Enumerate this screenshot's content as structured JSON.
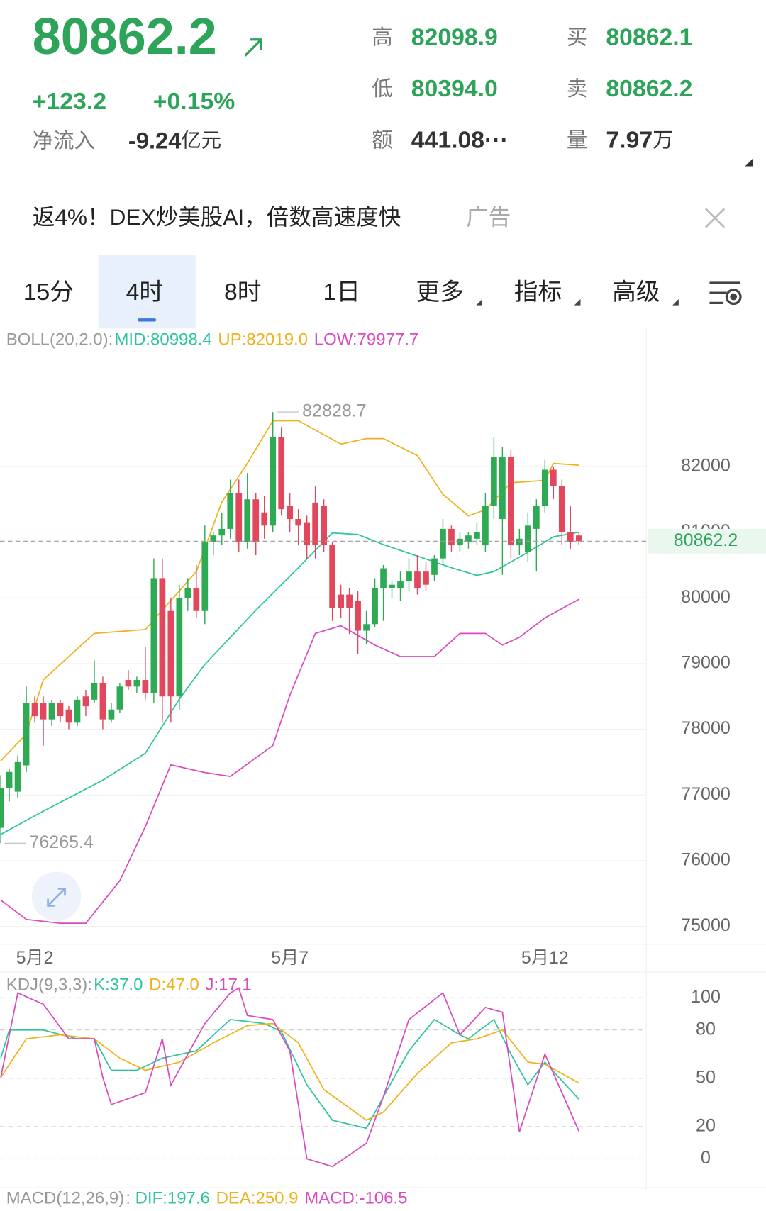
{
  "header": {
    "price": "80862.2",
    "change": "+123.2",
    "change_pct": "+0.15%",
    "inflow_label": "净流入",
    "inflow_value": "-9.24",
    "inflow_unit": "亿元",
    "stats": [
      {
        "label": "高",
        "value": "82098.9"
      },
      {
        "label": "低",
        "value": "80394.0"
      },
      {
        "label": "额",
        "value": "441.08···"
      },
      {
        "label": "买",
        "value": "80862.1"
      },
      {
        "label": "卖",
        "value": "80862.2"
      },
      {
        "label": "量",
        "value": "7.97",
        "unit": "万"
      }
    ]
  },
  "ad": {
    "text": "返4%！DEX炒美股AI，倍数高速度快",
    "tag": "广告"
  },
  "tabs": [
    "15分",
    "4时",
    "8时",
    "1日",
    "更多",
    "指标",
    "高级"
  ],
  "macd": {
    "label": "MACD(12,26,9)",
    "dif": "DIF:197.6",
    "dea": "DEA:250.9",
    "macd": "MACD:-106.5"
  },
  "chart_data": [
    {
      "type": "candlestick",
      "indicator": "BOLL(20,2.0):",
      "up_color": "#2eaa55",
      "down_color": "#e2475c",
      "categories": [
        null,
        null,
        null,
        null,
        "5月2",
        null,
        null,
        null,
        null,
        null,
        null,
        null,
        null,
        null,
        null,
        null,
        null,
        null,
        null,
        null,
        null,
        null,
        null,
        null,
        null,
        null,
        null,
        null,
        null,
        null,
        null,
        null,
        null,
        null,
        "5月7",
        null,
        null,
        null,
        null,
        null,
        null,
        null,
        null,
        null,
        null,
        null,
        null,
        null,
        null,
        null,
        null,
        null,
        null,
        null,
        null,
        null,
        null,
        null,
        null,
        null,
        null,
        null,
        null,
        null,
        "5月12",
        null,
        null,
        null,
        null
      ],
      "open": [
        76500,
        77100,
        77050,
        77450,
        78400,
        78400,
        78150,
        78400,
        78300,
        78100,
        78500,
        78450,
        78700,
        78150,
        78300,
        78750,
        78650,
        78750,
        78550,
        80300,
        79800,
        78500,
        80000,
        80150,
        79800,
        80850,
        80950,
        81050,
        81600,
        80850,
        81500,
        81300,
        81100,
        82450,
        81400,
        81200,
        81150,
        81450,
        81400,
        80800,
        80050,
        80050,
        79950,
        79500,
        79600,
        80150,
        80150,
        80150,
        80250,
        80400,
        80400,
        80350,
        80600,
        81050,
        80800,
        80850,
        80900,
        80800,
        81400,
        81200,
        82150,
        80800,
        80700,
        81050,
        81400,
        81950,
        81700,
        81000,
        80950
      ],
      "high": [
        77300,
        77400,
        77600,
        78650,
        78500,
        78500,
        78450,
        78450,
        78350,
        78500,
        78600,
        79050,
        78800,
        78400,
        78700,
        78900,
        78800,
        79250,
        80600,
        80600,
        80000,
        80200,
        80300,
        80500,
        81100,
        81000,
        81300,
        81800,
        81800,
        81900,
        81600,
        81550,
        82828.7,
        82600,
        81600,
        81350,
        81250,
        81700,
        81500,
        80850,
        80200,
        80150,
        80100,
        79800,
        80300,
        80500,
        80250,
        80400,
        80600,
        80650,
        80550,
        80650,
        81200,
        81100,
        81000,
        81000,
        81150,
        81600,
        82450,
        82300,
        82250,
        81050,
        81300,
        81500,
        82100,
        82000,
        81800,
        81400,
        81000
      ],
      "low": [
        76265.4,
        76900,
        76950,
        77350,
        78100,
        77750,
        78050,
        78100,
        78000,
        78050,
        78200,
        78400,
        78000,
        78100,
        78250,
        78600,
        78550,
        78450,
        78400,
        78100,
        78100,
        78300,
        79800,
        79700,
        79600,
        80650,
        80800,
        80900,
        80700,
        80750,
        80650,
        80900,
        81000,
        81250,
        81000,
        80800,
        80600,
        80600,
        80700,
        79650,
        79700,
        79450,
        79150,
        79300,
        79550,
        79650,
        80000,
        79950,
        80100,
        80050,
        80100,
        80250,
        80500,
        80700,
        80700,
        80750,
        80800,
        80700,
        81200,
        80350,
        80600,
        80650,
        80550,
        80400,
        81300,
        81500,
        80800,
        80750,
        80800
      ],
      "close": [
        77100,
        77350,
        77500,
        78400,
        78200,
        78150,
        78400,
        78200,
        78100,
        78450,
        78350,
        78700,
        78150,
        78300,
        78650,
        78650,
        78750,
        78550,
        80300,
        78500,
        78500,
        80000,
        80150,
        79800,
        80850,
        80950,
        81050,
        81600,
        80850,
        81500,
        80850,
        81100,
        82450,
        81350,
        81200,
        81100,
        80800,
        80800,
        80800,
        79850,
        79850,
        79850,
        79500,
        79600,
        80150,
        80450,
        80200,
        80250,
        80400,
        80150,
        80200,
        80600,
        81050,
        80800,
        80900,
        80950,
        81000,
        81400,
        82150,
        82150,
        80800,
        80900,
        81100,
        81400,
        81950,
        81700,
        81000,
        80850,
        80862.2
      ],
      "series": [
        {
          "name": "MID:80998.4",
          "color": "#2ec4a0",
          "x": [
            0,
            5,
            12,
            17,
            21,
            24,
            30,
            35,
            39,
            42,
            45,
            49,
            53,
            56,
            58,
            62,
            65,
            68
          ],
          "values": [
            76400,
            76753,
            77224,
            77635,
            78459,
            78988,
            79812,
            80459,
            80988,
            80965,
            80812,
            80635,
            80459,
            80341,
            80400,
            80694,
            80929,
            80998.4
          ]
        },
        {
          "name": "UP:82019.0",
          "color": "#eeb21c",
          "x": [
            0,
            3,
            5,
            11,
            17,
            19,
            23,
            26,
            29,
            32,
            35,
            40,
            43,
            45,
            49,
            52,
            55,
            57,
            60,
            64,
            65,
            68
          ],
          "values": [
            77518,
            77929,
            78753,
            79459,
            79518,
            79812,
            80400,
            81459,
            82047,
            82694,
            82694,
            82341,
            82424,
            82424,
            82165,
            81576,
            81247,
            81341,
            81753,
            81788,
            82047,
            82019.0
          ]
        },
        {
          "name": "LOW:79977.7",
          "color": "#d94bbf",
          "x": [
            0,
            3,
            7,
            10,
            14,
            17,
            20,
            24,
            27,
            32,
            34,
            37,
            40,
            44,
            47,
            51,
            54,
            57,
            59,
            61,
            64,
            68
          ],
          "values": [
            75400,
            75106,
            75047,
            75047,
            75694,
            76518,
            77459,
            77341,
            77282,
            77753,
            78518,
            79459,
            79576,
            79282,
            79106,
            79106,
            79459,
            79459,
            79282,
            79400,
            79694,
            79977.7
          ]
        }
      ],
      "ylim": [
        74750,
        84100
      ],
      "yticks": [
        75000,
        76000,
        77000,
        78000,
        79000,
        80000,
        81000,
        82000
      ],
      "grid": true,
      "current_price": 80862.2,
      "max_price": 82828.7,
      "min_price": 76265.4
    },
    {
      "type": "line",
      "indicator": "KDJ(9,3,3):",
      "series": [
        {
          "name": "K:37.0",
          "color": "#2ec4a0",
          "x": [
            0,
            1,
            5,
            9,
            11,
            13,
            16,
            19,
            23,
            27,
            31,
            33,
            36,
            39,
            43,
            45,
            48,
            51,
            54,
            55,
            58,
            60,
            62,
            64,
            68
          ],
          "values": [
            62.5,
            80,
            80,
            74.5,
            74.5,
            55,
            55,
            62.5,
            67,
            86.5,
            84,
            79,
            46,
            24,
            19,
            38.5,
            67,
            86.5,
            77,
            74.5,
            86.5,
            65,
            46,
            60,
            37.0
          ]
        },
        {
          "name": "D:47.0",
          "color": "#eeb21c",
          "x": [
            0,
            3,
            7,
            11,
            14,
            17,
            21,
            25,
            29,
            32,
            35,
            38,
            43,
            45,
            49,
            53,
            56,
            59,
            62,
            64,
            68
          ],
          "values": [
            50.5,
            74.5,
            77,
            74.5,
            62.5,
            55,
            60,
            72,
            82.7,
            84,
            72,
            43,
            24,
            29,
            53,
            72,
            74.5,
            80,
            60,
            58.7,
            47.0
          ]
        },
        {
          "name": "J:17.1",
          "color": "#d94bbf",
          "x": [
            0,
            2,
            5,
            8,
            11,
            12,
            13,
            17,
            19,
            20,
            22,
            24,
            27,
            28,
            29,
            32,
            34,
            36,
            39,
            43,
            45,
            48,
            52,
            54,
            57,
            59,
            61,
            64,
            68
          ],
          "values": [
            50.5,
            103,
            96,
            74.5,
            74.5,
            50.5,
            33.7,
            41,
            74.5,
            45.7,
            65,
            84,
            103,
            106,
            89,
            86.5,
            67,
            0,
            -4.8,
            9.6,
            38.5,
            86.5,
            103,
            77,
            94,
            91,
            16.8,
            65,
            17.1
          ]
        }
      ],
      "ylim": [
        -17,
        114
      ],
      "yticks": [
        0,
        20,
        50,
        80,
        100
      ],
      "grid": true
    }
  ]
}
